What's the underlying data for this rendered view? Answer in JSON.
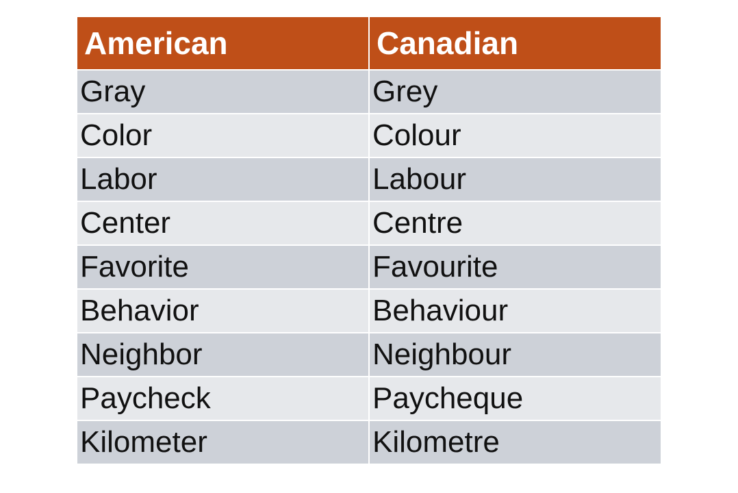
{
  "table": {
    "header": [
      "American",
      "Canadian"
    ],
    "rows": [
      [
        "Gray",
        "Grey"
      ],
      [
        "Color",
        "Colour"
      ],
      [
        "Labor",
        "Labour"
      ],
      [
        "Center",
        "Centre"
      ],
      [
        "Favorite",
        "Favourite"
      ],
      [
        "Behavior",
        "Behaviour"
      ],
      [
        "Neighbor",
        "Neighbour"
      ],
      [
        "Paycheck",
        "Paycheque"
      ],
      [
        "Kilometer",
        "Kilometre"
      ]
    ]
  }
}
